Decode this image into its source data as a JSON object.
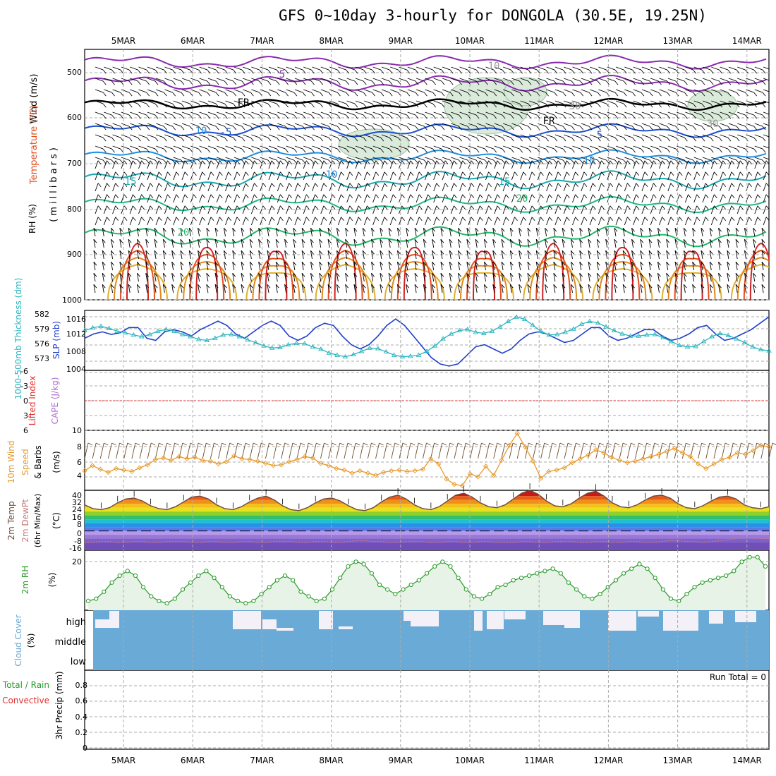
{
  "title": "GFS 0~10day 3-hourly for DONGOLA (30.5E, 19.25N)",
  "dates": [
    "5MAR",
    "6MAR",
    "7MAR",
    "8MAR",
    "9MAR",
    "10MAR",
    "11MAR",
    "12MAR",
    "13MAR",
    "14MAR"
  ],
  "colors": {
    "grid": "#aaaaaa",
    "slp": "#1f3fcc",
    "thickness": "#2ab5bf",
    "wind_speed": "#e89a2a",
    "barb": "#6b4a2a",
    "rh": "#2a9a2a",
    "rh_fill": "#e6f3e6",
    "cloud": "#6aaad6",
    "cloud_gap": "#f4f0f8",
    "lifted": "#e03030",
    "cape": "#b070d0",
    "temp_line": "#6b4a3a",
    "dewpt_line": "#c87a7a"
  },
  "panels": {
    "sounding": {
      "ylabels": [
        "RH (%)",
        "Temperature (°C)",
        "Wind (m/s)"
      ],
      "unit_label": "(millibars)",
      "pressure_ticks": [
        "500",
        "600",
        "700",
        "800",
        "900",
        "1000"
      ],
      "contour_labels": [
        "5",
        "FR",
        "-5",
        "10",
        "15",
        "20",
        "10",
        "15",
        "20",
        "5",
        "10",
        "FR",
        "10",
        "30",
        "30",
        "5",
        "-5"
      ]
    },
    "thickness_slp": {
      "left_label": "1000-500mb Thickness (dm)",
      "right_label": "SLP (mb)",
      "thickness_ticks": [
        "582",
        "579",
        "576",
        "573"
      ],
      "slp_ticks": [
        "1016",
        "1012",
        "1008",
        "1004"
      ]
    },
    "stability": {
      "left_label": "Lifted Index",
      "right_label": "CAPE (J/kg)",
      "li_ticks": [
        "-6",
        "-3",
        "0",
        "3",
        "6"
      ],
      "cape_tick": "10"
    },
    "wind10m": {
      "label1": "10m Wind",
      "label2": "Speed",
      "label3": "& Barbs",
      "unit": "(m/s)",
      "ticks": [
        "8",
        "6",
        "4"
      ]
    },
    "temp2m": {
      "label1": "2m Temp",
      "label2": "2m DewPt",
      "label3": "(6hr Min/Max)",
      "unit": "(°C)",
      "ticks": [
        "40",
        "32",
        "24",
        "16",
        "8",
        "0",
        "-8",
        "-16"
      ]
    },
    "rh2m": {
      "label": "2m RH",
      "unit": "(%)",
      "tick": "20"
    },
    "cloud": {
      "label": "Cloud Cover",
      "unit": "(%)",
      "levels": [
        "high",
        "middle",
        "low"
      ]
    },
    "precip": {
      "label1": "Total / Rain",
      "label2": "Convective",
      "label3": "3hr Precip (mm)",
      "run_total": "Run Total = 0",
      "ticks": [
        "0.8",
        "0.6",
        "0.4",
        "0.2",
        "0"
      ]
    }
  },
  "chart_data": [
    {
      "type": "line",
      "title": "1000-500mb Thickness (dm) / SLP (mb)",
      "series": [
        {
          "name": "SLP (mb)",
          "values": [
            1011.5,
            1012.5,
            1013,
            1012.4,
            1012.8,
            1014,
            1014,
            1011.5,
            1011,
            1013,
            1013.5,
            1013,
            1012,
            1013.5,
            1014.5,
            1015.5,
            1014.5,
            1012.5,
            1011.5,
            1013,
            1014.5,
            1015.5,
            1014.5,
            1012,
            1011,
            1012,
            1014,
            1015,
            1014.5,
            1012,
            1010,
            1009,
            1010,
            1012,
            1014.5,
            1016,
            1014.5,
            1012,
            1009.5,
            1007,
            1005.5,
            1005,
            1005.5,
            1007.5,
            1009.5,
            1010,
            1009,
            1008,
            1009,
            1011,
            1012.5,
            1013,
            1012.5,
            1011.5,
            1010.5,
            1011,
            1012.5,
            1014,
            1014,
            1012,
            1011,
            1011.5,
            1012.5,
            1013.5,
            1013.5,
            1012,
            1011,
            1011.5,
            1012.5,
            1014,
            1014.5,
            1012.5,
            1011,
            1011.5,
            1012.5,
            1013.5,
            1015,
            1016.5
          ]
        },
        {
          "name": "1000-500mb Thickness (dm)",
          "values": [
            579.3,
            579.8,
            580.1,
            579.7,
            579.2,
            578.9,
            578.5,
            578.2,
            578.6,
            579.2,
            579.5,
            579.2,
            578.6,
            578.2,
            577.7,
            577.5,
            577.9,
            578.5,
            578.6,
            578.2,
            577.6,
            577.1,
            576.5,
            576.1,
            576.2,
            576.7,
            577,
            576.9,
            576.3,
            575.9,
            575.2,
            574.8,
            574.5,
            574.9,
            575.5,
            576.1,
            576,
            575.4,
            574.8,
            574.5,
            574.6,
            574.8,
            575.5,
            576.5,
            577.8,
            578.7,
            579.3,
            579.5,
            579,
            578.8,
            579.2,
            580,
            581,
            581.8,
            581.4,
            580.3,
            579.2,
            578.5,
            578.6,
            579,
            579.6,
            580.5,
            581,
            580.7,
            580,
            579.3,
            578.7,
            578.3,
            578.3,
            578.5,
            578.6,
            578,
            577.3,
            576.6,
            576.3,
            576.4,
            577.3,
            578.2,
            578.8,
            578.4,
            577.8,
            577.1,
            576.3,
            575.8,
            575.6
          ]
        }
      ],
      "ylim_thickness": [
        572,
        583
      ],
      "ylim_slp": [
        1004,
        1018
      ]
    },
    {
      "type": "line",
      "title": "10m Wind Speed (m/s)",
      "values": [
        4.6,
        5.3,
        4.8,
        4.4,
        4.9,
        4.7,
        4.5,
        5.0,
        5.4,
        6.1,
        6.3,
        6.0,
        6.5,
        6.2,
        6.4,
        6.0,
        5.9,
        5.5,
        5.8,
        6.6,
        6.2,
        6.1,
        5.9,
        5.6,
        5.3,
        5.4,
        5.8,
        6.1,
        6.5,
        6.3,
        5.6,
        5.3,
        4.9,
        4.7,
        4.3,
        4.6,
        4.3,
        4.0,
        4.4,
        4.6,
        4.7,
        4.5,
        4.6,
        4.8,
        6.2,
        5.5,
        3.5,
        2.8,
        2.6,
        4.2,
        3.8,
        5.2,
        4.0,
        6.0,
        8.0,
        9.6,
        7.8,
        5.9,
        3.6,
        4.5,
        4.7,
        5.0,
        5.7,
        6.2,
        6.7,
        7.4,
        7.0,
        6.4,
        6.0,
        5.7,
        5.9,
        6.2,
        6.5,
        6.8,
        7.2,
        7.6,
        7.0,
        6.5,
        5.5,
        4.9,
        5.5,
        6.1,
        6.4,
        7.0,
        6.8,
        7.3,
        8.0,
        7.8
      ],
      "ylim": [
        2,
        10
      ]
    },
    {
      "type": "line",
      "title": "2m RH (%)",
      "values": [
        2,
        3,
        6,
        10,
        13,
        15,
        13,
        8,
        4,
        2,
        1,
        3,
        7,
        10,
        13,
        15,
        12,
        8,
        4,
        2,
        1,
        2,
        5,
        8,
        11,
        13,
        11,
        6,
        4,
        2,
        3,
        7,
        12,
        17,
        19,
        18,
        14,
        9,
        7,
        5,
        7,
        9,
        11,
        14,
        17,
        19,
        17,
        12,
        7,
        4,
        3,
        5,
        8,
        9,
        11,
        12,
        13,
        14,
        15,
        16,
        14,
        10,
        7,
        4,
        3,
        5,
        8,
        11,
        14,
        16,
        18,
        16,
        12,
        7,
        3,
        2,
        5,
        8,
        10,
        11,
        12,
        13,
        15,
        19,
        21,
        21,
        17
      ],
      "ylim": [
        -2,
        24
      ]
    },
    {
      "type": "area",
      "title": "2m Temp (°C)",
      "values": [
        27,
        23,
        22,
        24,
        29,
        33,
        34,
        31,
        26,
        23,
        22,
        25,
        30,
        35,
        36,
        33,
        27,
        23,
        22,
        25,
        30,
        34,
        36,
        32,
        26,
        22,
        21,
        24,
        29,
        33,
        34,
        31,
        26,
        22,
        21,
        24,
        30,
        35,
        37,
        33,
        27,
        23,
        22,
        25,
        31,
        37,
        39,
        35,
        29,
        25,
        24,
        27,
        33,
        39,
        42,
        38,
        31,
        26,
        25,
        28,
        34,
        39,
        41,
        36,
        29,
        25,
        24,
        27,
        32,
        36,
        37,
        34,
        28,
        24,
        23,
        26,
        31,
        35,
        36,
        33,
        27,
        24,
        23,
        25
      ],
      "ylim": [
        -20,
        42
      ]
    },
    {
      "type": "line",
      "title": "2m DewPt (°C)",
      "values": [
        -12,
        -12,
        -11,
        -11,
        -12,
        -12,
        -11,
        -11,
        -12,
        -12,
        -11,
        -11,
        -11,
        -12,
        -12,
        -11,
        -11,
        -12,
        -12,
        -11,
        -11,
        -12,
        -12,
        -11,
        -11,
        -11,
        -12,
        -12,
        -11,
        -11,
        -12,
        -12,
        -11,
        -10,
        -10,
        -11,
        -11,
        -12,
        -12,
        -11,
        -11,
        -11,
        -12,
        -12,
        -11,
        -11,
        -12,
        -12,
        -11,
        -11,
        -12,
        -12,
        -12,
        -11,
        -11,
        -12,
        -12,
        -11,
        -11,
        -11,
        -12,
        -12,
        -11,
        -11,
        -12,
        -12,
        -11,
        -11,
        -12,
        -12,
        -11,
        -10,
        -10,
        -11,
        -11,
        -12,
        -11,
        -10,
        -9,
        -8,
        -7,
        -7,
        -8,
        -8
      ],
      "ylim": [
        -20,
        42
      ]
    },
    {
      "type": "bar",
      "title": "Cloud Cover (%) - high",
      "values": [
        0,
        30,
        60,
        80,
        80,
        80,
        80,
        80,
        80,
        80,
        80,
        80,
        80,
        80,
        80,
        80,
        80,
        80,
        80,
        80,
        80,
        80,
        80,
        80,
        80,
        80,
        80,
        80,
        80,
        80,
        80,
        80,
        80,
        80,
        80,
        80,
        80,
        80,
        80,
        80,
        80,
        80,
        80,
        80,
        80,
        80,
        80,
        80,
        80,
        80,
        80,
        80,
        80,
        80,
        80,
        80,
        80,
        80,
        80,
        80,
        80,
        80,
        80,
        80,
        80,
        80,
        80,
        80,
        80,
        80,
        80,
        80,
        80,
        80,
        80,
        80,
        80,
        80,
        80,
        80,
        80,
        80,
        80,
        80
      ]
    },
    {
      "type": "bar",
      "title": "3hr Precip (mm)",
      "values": [],
      "ylim": [
        0,
        1
      ]
    }
  ]
}
